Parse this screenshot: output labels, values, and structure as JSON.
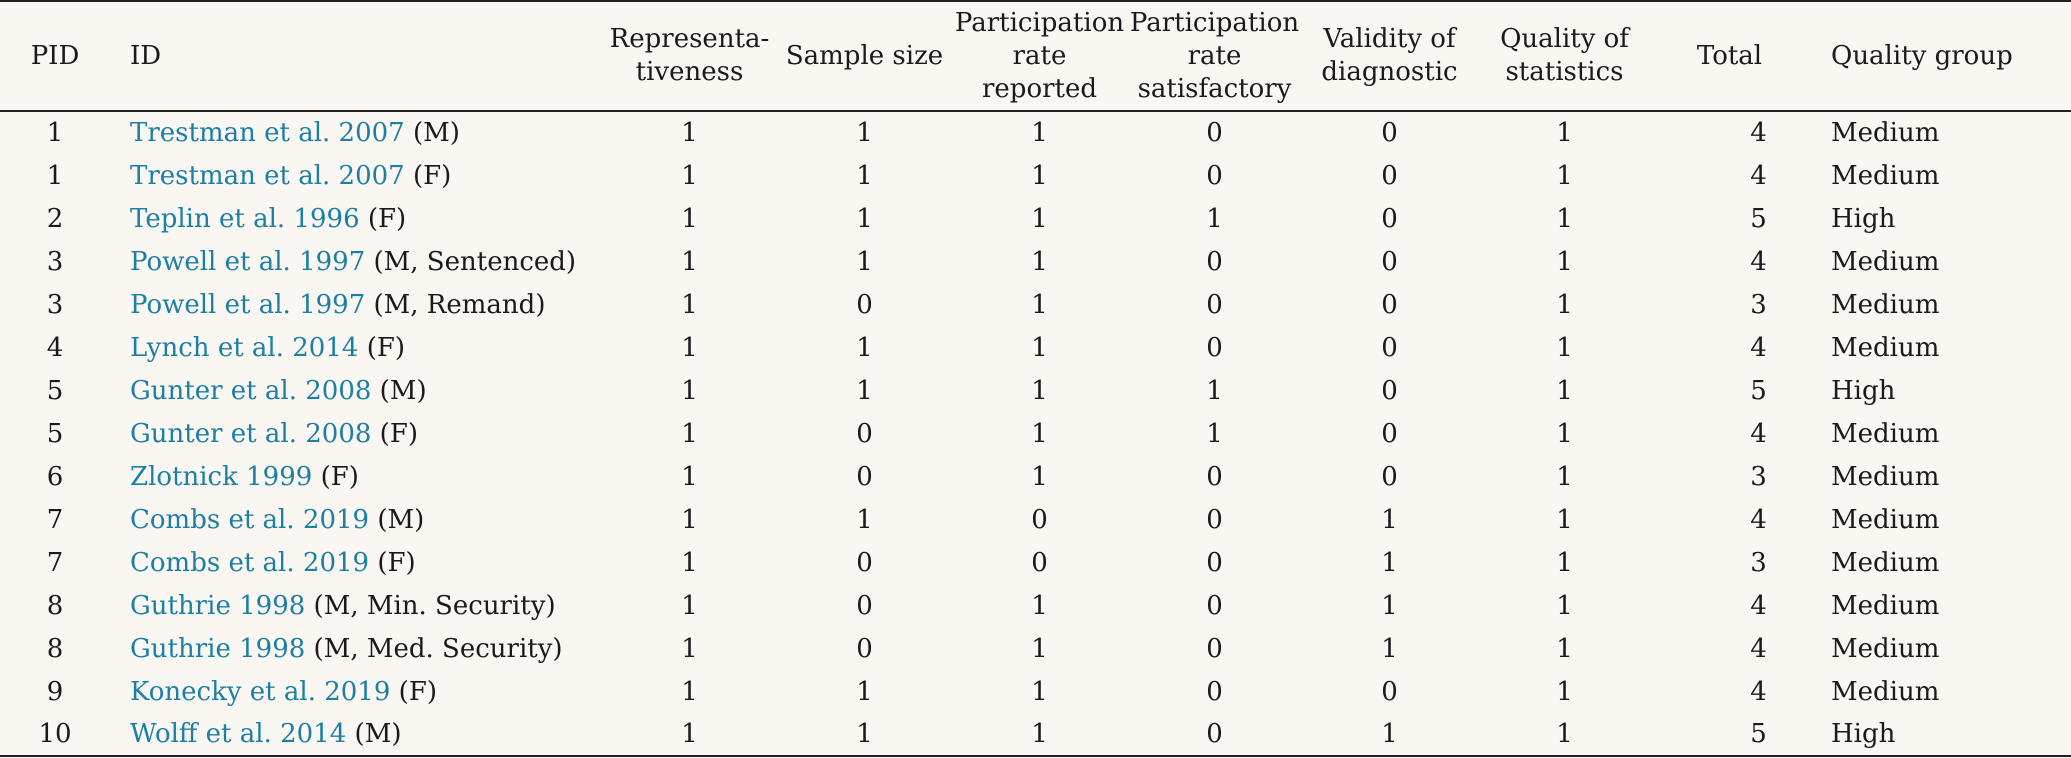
{
  "table": {
    "headers": {
      "pid": "PID",
      "id": "ID",
      "representativeness": [
        "Representa-",
        "tiveness"
      ],
      "sample_size": "Sample size",
      "participation_reported": [
        "Participation",
        "rate reported"
      ],
      "participation_satisfactory": [
        "Participation",
        "rate",
        "satisfactory"
      ],
      "validity": [
        "Validity of",
        "diagnostic"
      ],
      "quality_stats": [
        "Quality of",
        "statistics"
      ],
      "total": "Total",
      "quality_group": "Quality group"
    },
    "rows": [
      {
        "pid": "1",
        "study": "Trestman et al. 2007",
        "note": "(M)",
        "rep": "1",
        "sample": "1",
        "part_rep": "1",
        "part_sat": "0",
        "validity": "0",
        "stats": "1",
        "total": "4",
        "group": "Medium"
      },
      {
        "pid": "1",
        "study": "Trestman et al. 2007",
        "note": "(F)",
        "rep": "1",
        "sample": "1",
        "part_rep": "1",
        "part_sat": "0",
        "validity": "0",
        "stats": "1",
        "total": "4",
        "group": "Medium"
      },
      {
        "pid": "2",
        "study": "Teplin et al. 1996",
        "note": "(F)",
        "rep": "1",
        "sample": "1",
        "part_rep": "1",
        "part_sat": "1",
        "validity": "0",
        "stats": "1",
        "total": "5",
        "group": "High"
      },
      {
        "pid": "3",
        "study": "Powell et al. 1997",
        "note": "(M, Sentenced)",
        "rep": "1",
        "sample": "1",
        "part_rep": "1",
        "part_sat": "0",
        "validity": "0",
        "stats": "1",
        "total": "4",
        "group": "Medium"
      },
      {
        "pid": "3",
        "study": "Powell et al. 1997",
        "note": "(M, Remand)",
        "rep": "1",
        "sample": "0",
        "part_rep": "1",
        "part_sat": "0",
        "validity": "0",
        "stats": "1",
        "total": "3",
        "group": "Medium"
      },
      {
        "pid": "4",
        "study": "Lynch et al. 2014",
        "note": "(F)",
        "rep": "1",
        "sample": "1",
        "part_rep": "1",
        "part_sat": "0",
        "validity": "0",
        "stats": "1",
        "total": "4",
        "group": "Medium"
      },
      {
        "pid": "5",
        "study": "Gunter et al. 2008",
        "note": "(M)",
        "rep": "1",
        "sample": "1",
        "part_rep": "1",
        "part_sat": "1",
        "validity": "0",
        "stats": "1",
        "total": "5",
        "group": "High"
      },
      {
        "pid": "5",
        "study": "Gunter et al. 2008",
        "note": "(F)",
        "rep": "1",
        "sample": "0",
        "part_rep": "1",
        "part_sat": "1",
        "validity": "0",
        "stats": "1",
        "total": "4",
        "group": "Medium"
      },
      {
        "pid": "6",
        "study": "Zlotnick 1999",
        "note": "(F)",
        "rep": "1",
        "sample": "0",
        "part_rep": "1",
        "part_sat": "0",
        "validity": "0",
        "stats": "1",
        "total": "3",
        "group": "Medium"
      },
      {
        "pid": "7",
        "study": "Combs et al. 2019",
        "note": "(M)",
        "rep": "1",
        "sample": "1",
        "part_rep": "0",
        "part_sat": "0",
        "validity": "1",
        "stats": "1",
        "total": "4",
        "group": "Medium"
      },
      {
        "pid": "7",
        "study": "Combs et al. 2019",
        "note": "(F)",
        "rep": "1",
        "sample": "0",
        "part_rep": "0",
        "part_sat": "0",
        "validity": "1",
        "stats": "1",
        "total": "3",
        "group": "Medium"
      },
      {
        "pid": "8",
        "study": "Guthrie 1998",
        "note": "(M, Min. Security)",
        "rep": "1",
        "sample": "0",
        "part_rep": "1",
        "part_sat": "0",
        "validity": "1",
        "stats": "1",
        "total": "4",
        "group": "Medium"
      },
      {
        "pid": "8",
        "study": "Guthrie 1998",
        "note": "(M, Med. Security)",
        "rep": "1",
        "sample": "0",
        "part_rep": "1",
        "part_sat": "0",
        "validity": "1",
        "stats": "1",
        "total": "4",
        "group": "Medium"
      },
      {
        "pid": "9",
        "study": "Konecky et al. 2019",
        "note": "(F)",
        "rep": "1",
        "sample": "1",
        "part_rep": "1",
        "part_sat": "0",
        "validity": "0",
        "stats": "1",
        "total": "4",
        "group": "Medium"
      },
      {
        "pid": "10",
        "study": "Wolff et al. 2014",
        "note": "(M)",
        "rep": "1",
        "sample": "1",
        "part_rep": "1",
        "part_sat": "0",
        "validity": "1",
        "stats": "1",
        "total": "5",
        "group": "High"
      }
    ]
  },
  "colors": {
    "link": "#1b7fa6",
    "background": "#faf6f1",
    "text": "#1a1a1a"
  }
}
